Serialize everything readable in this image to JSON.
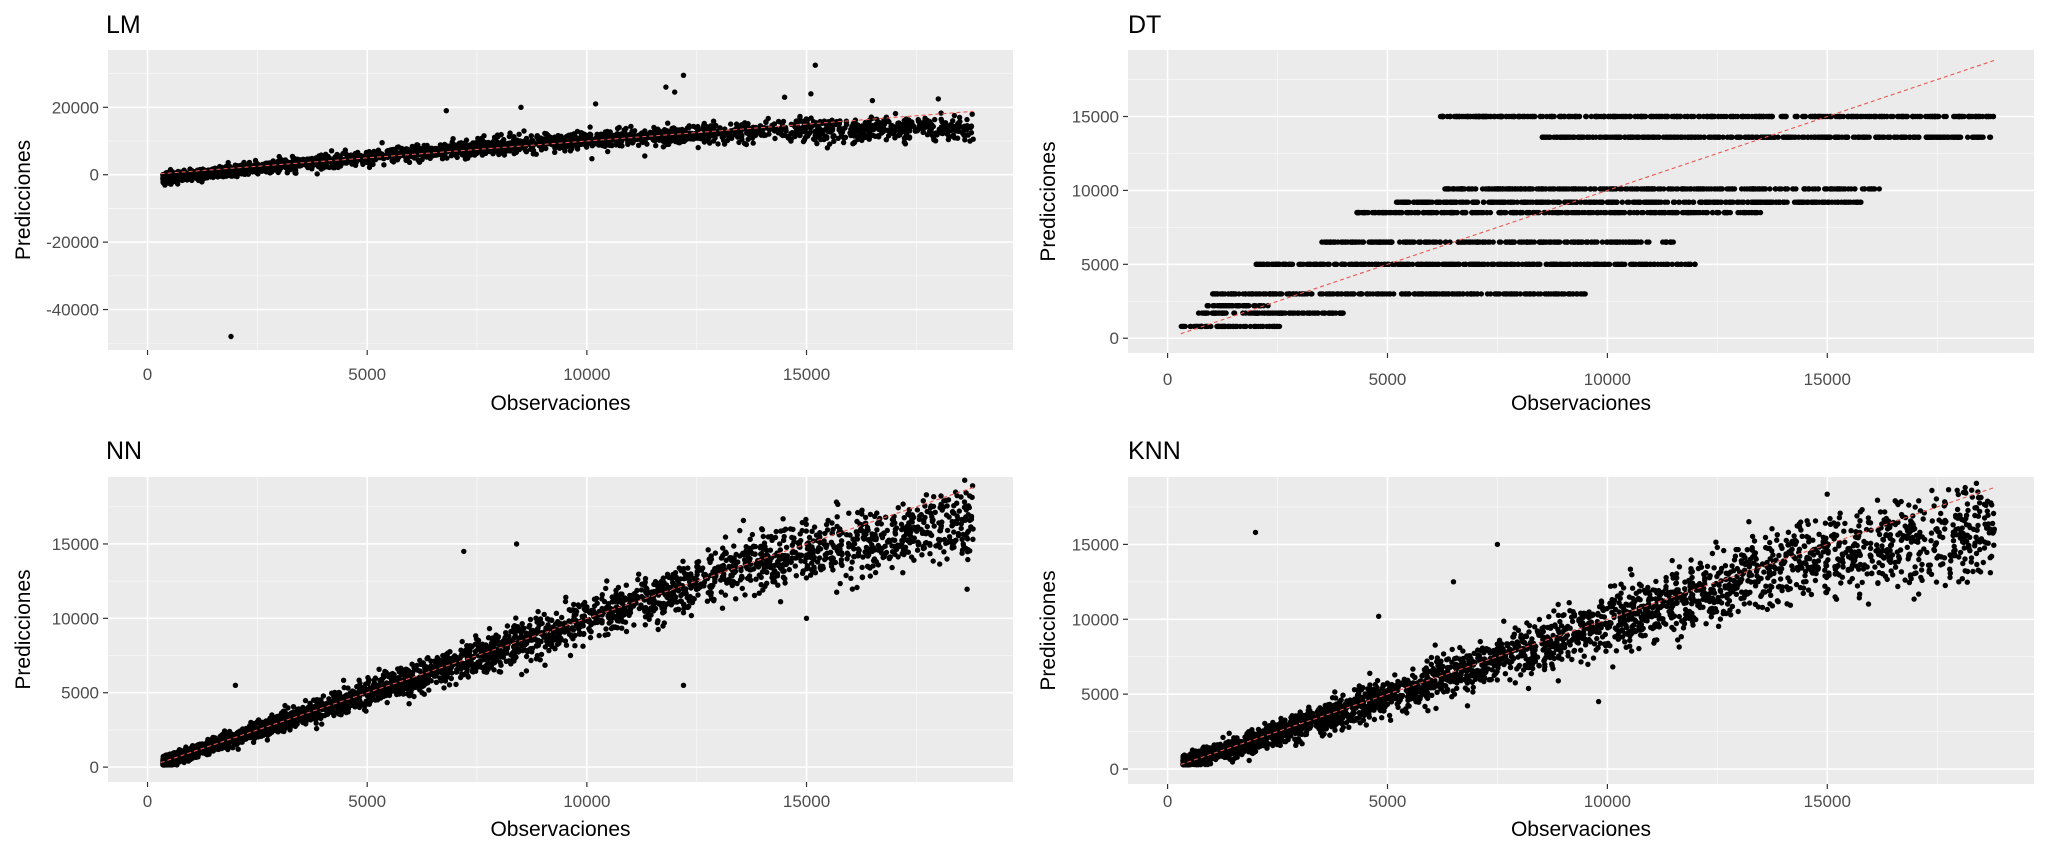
{
  "chart_data": [
    {
      "type": "scatter",
      "title": "LM",
      "xlabel": "Observaciones",
      "ylabel": "Predicciones",
      "xlim": [
        -900,
        19700
      ],
      "ylim": [
        -52000,
        37000
      ],
      "xticks": [
        0,
        5000,
        10000,
        15000
      ],
      "yticks": [
        -40000,
        -20000,
        0,
        20000
      ],
      "xtick_labels": [
        "0",
        "5000",
        "10000",
        "15000"
      ],
      "ytick_labels": [
        "-40000",
        "-20000",
        "0",
        "20000"
      ],
      "grid": true,
      "reference_line": {
        "from": [
          300,
          300
        ],
        "to": [
          18800,
          18800
        ],
        "style": "dashed",
        "color": "#e8574e"
      },
      "points_summary": "Dense band of ~5000 points rising from about -1000 at x=400 to about 14000 at x=18500; scattered outliers up to ~32000 and one low outlier near (1900, -48000).",
      "outliers": [
        [
          1900,
          -48000
        ],
        [
          15200,
          32500
        ],
        [
          12200,
          29500
        ],
        [
          11800,
          26000
        ],
        [
          12000,
          24500
        ],
        [
          15100,
          24000
        ],
        [
          8500,
          20000
        ],
        [
          6800,
          19000
        ],
        [
          14500,
          23000
        ],
        [
          16500,
          22000
        ],
        [
          18000,
          22500
        ],
        [
          10200,
          21000
        ]
      ]
    },
    {
      "type": "scatter",
      "title": "DT",
      "xlabel": "Observaciones",
      "ylabel": "Predicciones",
      "xlim": [
        -900,
        19700
      ],
      "ylim": [
        -1000,
        19500
      ],
      "xticks": [
        0,
        5000,
        10000,
        15000
      ],
      "yticks": [
        0,
        5000,
        10000,
        15000
      ],
      "xtick_labels": [
        "0",
        "5000",
        "10000",
        "15000"
      ],
      "ytick_labels": [
        "0",
        "5000",
        "10000",
        "15000"
      ],
      "grid": true,
      "reference_line": {
        "from": [
          300,
          300
        ],
        "to": [
          18800,
          18800
        ],
        "style": "dashed",
        "color": "#e8574e"
      },
      "levels": [
        {
          "y": 800,
          "x_range": [
            300,
            2600
          ]
        },
        {
          "y": 1700,
          "x_range": [
            700,
            4000
          ]
        },
        {
          "y": 2200,
          "x_range": [
            900,
            2300
          ]
        },
        {
          "y": 3000,
          "x_range": [
            1000,
            9500
          ]
        },
        {
          "y": 5000,
          "x_range": [
            2000,
            12000
          ]
        },
        {
          "y": 6500,
          "x_range": [
            3500,
            11500
          ]
        },
        {
          "y": 8500,
          "x_range": [
            4300,
            13500
          ]
        },
        {
          "y": 9200,
          "x_range": [
            5200,
            15800
          ]
        },
        {
          "y": 10100,
          "x_range": [
            6300,
            16200
          ]
        },
        {
          "y": 13600,
          "x_range": [
            8500,
            18800
          ]
        },
        {
          "y": 15000,
          "x_range": [
            6100,
            18800
          ]
        }
      ]
    },
    {
      "type": "scatter",
      "title": "NN",
      "xlabel": "Observaciones",
      "ylabel": "Predicciones",
      "xlim": [
        -900,
        19700
      ],
      "ylim": [
        -1000,
        19500
      ],
      "xticks": [
        0,
        5000,
        10000,
        15000
      ],
      "yticks": [
        0,
        5000,
        10000,
        15000
      ],
      "xtick_labels": [
        "0",
        "5000",
        "10000",
        "15000"
      ],
      "ytick_labels": [
        "0",
        "5000",
        "10000",
        "15000"
      ],
      "grid": true,
      "reference_line": {
        "from": [
          300,
          300
        ],
        "to": [
          18800,
          18800
        ],
        "style": "dashed",
        "color": "#e8574e"
      },
      "points_summary": "Dense cloud close to the identity line, widening with x; values flatten to ~16000 near x=18500.",
      "outliers": [
        [
          12200,
          5500
        ],
        [
          15000,
          10000
        ],
        [
          7200,
          14500
        ],
        [
          8400,
          15000
        ],
        [
          2000,
          5500
        ]
      ]
    },
    {
      "type": "scatter",
      "title": "KNN",
      "xlabel": "Observaciones",
      "ylabel": "Predicciones",
      "xlim": [
        -900,
        19700
      ],
      "ylim": [
        -1000,
        19500
      ],
      "xticks": [
        0,
        5000,
        10000,
        15000
      ],
      "yticks": [
        0,
        5000,
        10000,
        15000
      ],
      "xtick_labels": [
        "0",
        "5000",
        "10000",
        "15000"
      ],
      "ytick_labels": [
        "0",
        "5000",
        "10000",
        "15000"
      ],
      "grid": true,
      "reference_line": {
        "from": [
          300,
          300
        ],
        "to": [
          18800,
          18800
        ],
        "style": "dashed",
        "color": "#e8574e"
      },
      "points_summary": "Dense cloud around the identity line with wider spread than NN, flattening near ~16000 at high x.",
      "outliers": [
        [
          2000,
          15800
        ],
        [
          7500,
          15000
        ],
        [
          6500,
          12500
        ],
        [
          4800,
          10200
        ],
        [
          9800,
          4500
        ],
        [
          12500,
          14800
        ]
      ]
    }
  ]
}
